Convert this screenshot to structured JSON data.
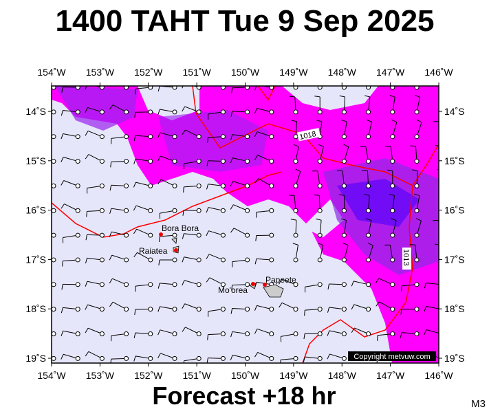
{
  "title": "1400 TAHT Tue 9 Sep 2025",
  "footer": "Forecast +18 hr",
  "model": "M3",
  "longitudes": [
    "154˚W",
    "153˚W",
    "152˚W",
    "151˚W",
    "150˚W",
    "149˚W",
    "148˚W",
    "147˚W",
    "146˚W"
  ],
  "latitudes": [
    "14˚S",
    "15˚S",
    "16˚S",
    "17˚S",
    "18˚S",
    "19˚S"
  ],
  "places": [
    "Bora Bora",
    "Raiatea",
    "Mo'orea",
    "Papeete"
  ],
  "isobars": [
    "1018",
    "1013"
  ],
  "copyright": "Copyright metvuw.com"
}
